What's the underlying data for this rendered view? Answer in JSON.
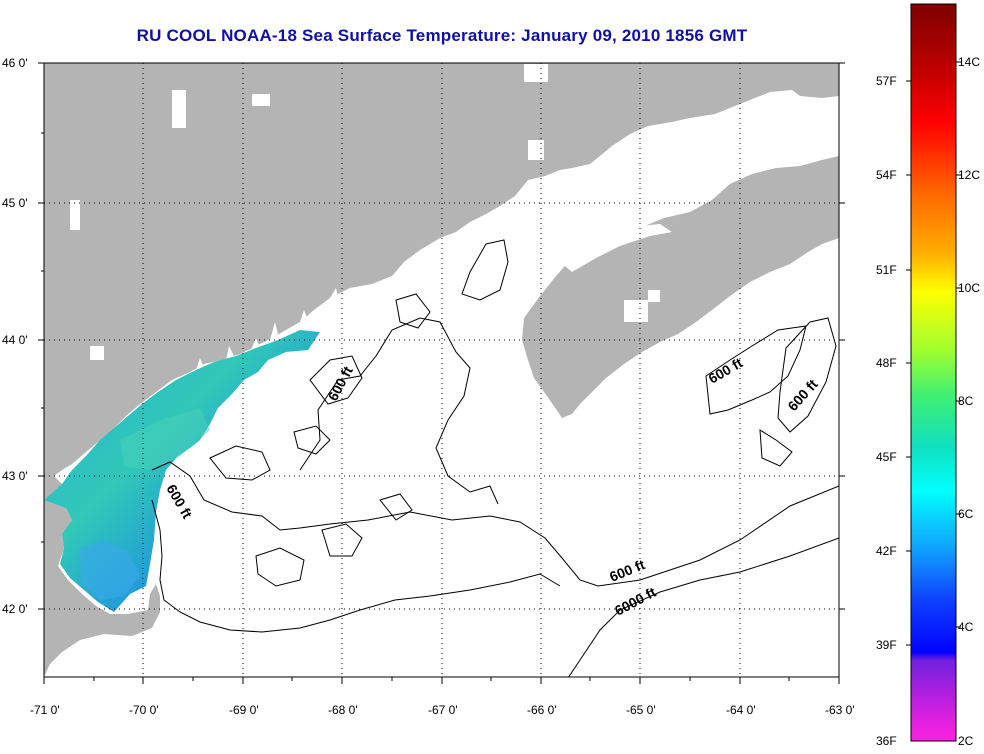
{
  "title": "RU COOL  NOAA-18  Sea Surface Temperature:  January 09, 2010 1856 GMT",
  "map": {
    "lon_range": [
      -71,
      -63
    ],
    "lat_range": [
      41.5,
      46
    ],
    "lon_ticks": [
      "-71 0'",
      "-70 0'",
      "-69 0'",
      "-68 0'",
      "-67 0'",
      "-66 0'",
      "-65 0'",
      "-64 0'",
      "-63 0'"
    ],
    "lat_ticks": [
      "46 0'",
      "45 0'",
      "44 0'",
      "43 0'",
      "42 0'"
    ],
    "grid": true,
    "land_color": "#b4b4b4",
    "ocean_color": "#ffffff",
    "contour_labels": [
      "600 ft",
      "600 ft",
      "600 ft",
      "600 ft",
      "600 ft",
      "6000 ft"
    ]
  },
  "colorbar": {
    "fahrenheit_labels": [
      "57F",
      "54F",
      "51F",
      "48F",
      "45F",
      "42F",
      "39F",
      "36F"
    ],
    "celsius_labels": [
      "14C",
      "12C",
      "10C",
      "8C",
      "6C",
      "4C",
      "2C"
    ],
    "range_c": [
      2,
      15
    ]
  }
}
